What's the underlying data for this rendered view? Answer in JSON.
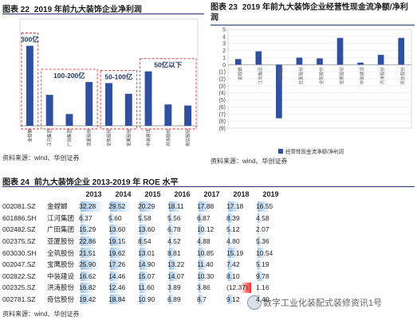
{
  "fig22": {
    "label": "图表 22",
    "title": "2019 年前九大装饰企业净利润",
    "source": "资料来源：wind、华创证券",
    "chart_data": {
      "type": "bar",
      "categories": [
        "金螳螂",
        "江河集团",
        "广田集团",
        "亚厦股份",
        "全筑股份",
        "宝鹰股份",
        "中装建设",
        "洪涛股份",
        "奇信股份"
      ],
      "values": [
        7.5,
        2.9,
        1.1,
        4.1,
        4.0,
        3.0,
        5.1,
        2.0,
        1.9
      ],
      "ylim": [
        0,
        10
      ],
      "grid": false,
      "annotations": [
        "300亿",
        "100-200亿",
        "50-100亿",
        "50亿以下"
      ],
      "color": "#2f4fa0"
    }
  },
  "fig23": {
    "label": "图表 23",
    "title": "2019 年前九大装饰企业经营性现金流净额/净利润",
    "source": "资料来源：wind、华创证券",
    "chart_data": {
      "type": "bar",
      "categories": [
        "金螳螂",
        "江河集团",
        "广田集团",
        "亚厦股份",
        "全筑股份",
        "宝鹰股份",
        "中装建设",
        "洪涛股份",
        "奇信股份"
      ],
      "values": [
        0.8,
        1.9,
        -7.6,
        1.0,
        0.9,
        3.8,
        0.3,
        1.4,
        3.8
      ],
      "ylim": [
        -9,
        5
      ],
      "yticks": [
        5,
        4,
        3,
        2,
        1,
        0,
        -1,
        -2,
        -3,
        -4,
        -5,
        -6,
        -7,
        -8,
        -9
      ],
      "ytick_labels": [
        "5",
        "4",
        "3",
        "2",
        "1",
        "0",
        "(1)",
        "(2)",
        "(3)",
        "(4)",
        "(5)",
        "(6)",
        "(7)",
        "(8)",
        "(9)"
      ],
      "grid": true,
      "legend": "经营性现金流净额/净利润",
      "legend_position": "bottom",
      "color": "#2f4fa0"
    }
  },
  "fig24": {
    "label": "图表 24",
    "title": "前九大装饰企业 2013-2019 年 ROE 水平",
    "source": "资料来源：wind、华创证券",
    "chart_data": {
      "type": "table",
      "columns": [
        "2013",
        "2014",
        "2015",
        "2016",
        "2017",
        "2018",
        "2019"
      ],
      "rows": [
        {
          "code": "002081.SZ",
          "name": "金螳螂",
          "values": [
            32.28,
            29.52,
            20.29,
            18.11,
            17.88,
            17.18,
            16.55
          ],
          "text": [
            "32.28",
            "29.52",
            "20.29",
            "18.11",
            "17.88",
            "17.18",
            "16.55"
          ]
        },
        {
          "code": "601886.SH",
          "name": "江河集团",
          "values": [
            6.37,
            5.6,
            5.58,
            5.56,
            6.87,
            8.39,
            4.58
          ],
          "text": [
            "6.37",
            "5.60",
            "5.58",
            "5.56",
            "6.87",
            "8.39",
            "4.58"
          ]
        },
        {
          "code": "002482.SZ",
          "name": "广田集团",
          "values": [
            15.29,
            13.6,
            13.6,
            6.78,
            10.12,
            5.12,
            2.07
          ],
          "text": [
            "15.29",
            "13.60",
            "13.60",
            "6.78",
            "10.12",
            "5.12",
            "2.07"
          ]
        },
        {
          "code": "002375.SZ",
          "name": "亚厦股份",
          "values": [
            22.86,
            19.15,
            8.54,
            4.52,
            4.88,
            4.8,
            5.36
          ],
          "text": [
            "22.86",
            "19.15",
            "8.54",
            "4.52",
            "4.88",
            "4.80",
            "5.36"
          ]
        },
        {
          "code": "603030.SH",
          "name": "全筑股份",
          "values": [
            21.51,
            19.62,
            13.01,
            8.81,
            10.85,
            15.19,
            10.54
          ],
          "text": [
            "21.51",
            "19.62",
            "13.01",
            "8.81",
            "10.85",
            "15.19",
            "10.54"
          ]
        },
        {
          "code": "002047.SZ",
          "name": "宝鹰股份",
          "values": [
            25.9,
            17.26,
            14.9,
            13.22,
            11.4,
            7.42,
            5.19
          ],
          "text": [
            "25.90",
            "17.26",
            "14.90",
            "13.22",
            "11.40",
            "7.42",
            "5.19"
          ]
        },
        {
          "code": "002822.SZ",
          "name": "中装建设",
          "values": [
            16.62,
            14.46,
            15.07,
            14.07,
            10.3,
            8.1,
            9.78
          ],
          "text": [
            "16.62",
            "14.46",
            "15.07",
            "14.07",
            "10.30",
            "8.10",
            "9.78"
          ]
        },
        {
          "code": "002325.SZ",
          "name": "洪涛股份",
          "values": [
            16.82,
            12.46,
            11.6,
            3.89,
            3.86,
            -12.37,
            1.16
          ],
          "text": [
            "16.82",
            "12.46",
            "11.60",
            "3.89",
            "3.86",
            "(12.37)",
            "1.16"
          ]
        },
        {
          "code": "002781.SZ",
          "name": "奇信股份",
          "values": [
            19.42,
            18.84,
            10.9,
            6.89,
            8.7,
            9.12,
            4.4
          ],
          "text": [
            "19.42",
            "18.84",
            "10.90",
            "6.89",
            "8.7",
            "9.12",
            "4.40"
          ]
        }
      ],
      "bar_color_positive": "#9dc3e6",
      "bar_color_negative": "#ff3b3b"
    }
  },
  "watermark": "数字工业化装配式装修资讯1号"
}
